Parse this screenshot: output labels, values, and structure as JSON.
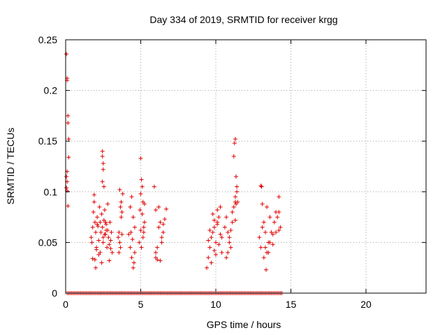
{
  "chart_data": {
    "type": "scatter",
    "title": "Day 334 of 2019, SRMTID for receiver krgg",
    "xlabel": "GPS time / hours",
    "ylabel": "SRMTID / TECUs",
    "xlim": [
      0,
      24
    ],
    "ylim": [
      0,
      0.25
    ],
    "xticks": [
      0,
      5,
      10,
      15,
      20
    ],
    "yticks": [
      0,
      0.05,
      0.1,
      0.15,
      0.2,
      0.25
    ],
    "xtick_labels": [
      "0",
      "5",
      "10",
      "15",
      "20"
    ],
    "ytick_labels": [
      "0",
      "0.05",
      "0.1",
      "0.15",
      "0.2",
      "0.25"
    ],
    "grid": true,
    "marker": "+",
    "color": "#e00000",
    "series": [
      {
        "name": "SRMTID",
        "x": [
          0.05,
          0.1,
          0.1,
          0.15,
          0.15,
          0.2,
          0.2,
          0.05,
          0.1,
          0.1,
          0.15,
          0.05,
          0.1,
          1.7,
          1.75,
          1.8,
          1.85,
          1.9,
          1.95,
          2.0,
          2.05,
          2.1,
          2.15,
          2.2,
          2.25,
          2.3,
          2.35,
          2.4,
          2.45,
          2.5,
          2.55,
          2.6,
          2.65,
          2.7,
          2.75,
          2.8,
          2.85,
          2.9,
          2.95,
          3.0,
          3.05,
          3.1,
          1.8,
          2.0,
          2.2,
          2.4,
          2.6,
          2.8,
          3.0,
          1.9,
          2.1,
          2.3,
          2.5,
          2.7,
          2.9,
          2.45,
          2.45,
          2.5,
          2.5,
          2.45,
          1.95,
          2.05,
          2.55,
          2.65,
          3.5,
          3.55,
          3.6,
          3.65,
          3.7,
          3.75,
          3.8,
          3.6,
          3.7,
          3.65,
          3.55,
          3.75,
          4.2,
          4.3,
          4.4,
          4.5,
          4.6,
          4.35,
          4.45,
          4.55,
          4.4,
          4.5,
          4.3,
          4.6,
          4.9,
          5.0,
          5.05,
          5.1,
          5.15,
          5.2,
          5.25,
          5.0,
          5.1,
          5.2,
          5.05,
          5.15,
          4.95,
          5.25,
          5.0,
          5.9,
          6.0,
          6.1,
          6.2,
          6.3,
          6.4,
          6.5,
          6.6,
          6.0,
          6.2,
          6.4,
          6.1,
          6.3,
          6.5,
          6.7,
          6.0,
          9.4,
          9.5,
          9.6,
          9.7,
          9.8,
          9.9,
          10.0,
          10.1,
          10.2,
          10.3,
          10.4,
          9.6,
          9.8,
          10.0,
          10.2,
          10.4,
          9.7,
          9.9,
          10.1,
          10.3,
          9.5,
          9.9,
          10.1,
          10.6,
          10.7,
          10.8,
          10.9,
          11.0,
          11.1,
          11.2,
          11.3,
          11.4,
          10.7,
          10.9,
          11.1,
          11.3,
          10.8,
          11.0,
          11.2,
          11.25,
          11.3,
          11.35,
          11.4,
          11.45,
          11.3,
          11.35,
          12.9,
          13.0,
          13.1,
          13.2,
          13.3,
          13.4,
          13.5,
          13.6,
          13.7,
          13.8,
          13.9,
          14.0,
          14.1,
          14.2,
          14.3,
          13.2,
          13.4,
          13.6,
          13.8,
          14.0,
          14.2,
          13.1,
          13.3,
          13.5,
          13.0,
          13.05,
          14.2,
          13.35
        ],
        "y": [
          0.236,
          0.212,
          0.21,
          0.175,
          0.168,
          0.152,
          0.134,
          0.115,
          0.11,
          0.101,
          0.086,
          0.104,
          0.12,
          0.055,
          0.05,
          0.065,
          0.08,
          0.09,
          0.07,
          0.06,
          0.045,
          0.075,
          0.066,
          0.052,
          0.085,
          0.07,
          0.06,
          0.078,
          0.065,
          0.05,
          0.072,
          0.082,
          0.058,
          0.068,
          0.045,
          0.062,
          0.055,
          0.048,
          0.07,
          0.052,
          0.06,
          0.04,
          0.034,
          0.025,
          0.038,
          0.03,
          0.058,
          0.088,
          0.044,
          0.097,
          0.068,
          0.04,
          0.055,
          0.062,
          0.032,
          0.14,
          0.135,
          0.128,
          0.122,
          0.11,
          0.033,
          0.043,
          0.105,
          0.07,
          0.055,
          0.06,
          0.05,
          0.045,
          0.075,
          0.08,
          0.098,
          0.102,
          0.09,
          0.085,
          0.04,
          0.058,
          0.058,
          0.045,
          0.035,
          0.025,
          0.065,
          0.06,
          0.053,
          0.03,
          0.095,
          0.075,
          0.085,
          0.04,
          0.05,
          0.133,
          0.112,
          0.105,
          0.09,
          0.065,
          0.07,
          0.062,
          0.078,
          0.06,
          0.045,
          0.055,
          0.082,
          0.088,
          0.098,
          0.105,
          0.04,
          0.033,
          0.065,
          0.07,
          0.055,
          0.06,
          0.073,
          0.082,
          0.085,
          0.05,
          0.045,
          0.032,
          0.068,
          0.083,
          0.035,
          0.025,
          0.035,
          0.045,
          0.055,
          0.06,
          0.065,
          0.05,
          0.07,
          0.075,
          0.085,
          0.04,
          0.062,
          0.078,
          0.038,
          0.048,
          0.055,
          0.03,
          0.072,
          0.082,
          0.058,
          0.052,
          0.042,
          0.068,
          0.065,
          0.075,
          0.06,
          0.05,
          0.045,
          0.07,
          0.085,
          0.09,
          0.1,
          0.035,
          0.055,
          0.08,
          0.072,
          0.04,
          0.062,
          0.135,
          0.148,
          0.152,
          0.115,
          0.105,
          0.09,
          0.095,
          0.088,
          0.055,
          0.045,
          0.065,
          0.07,
          0.06,
          0.085,
          0.05,
          0.075,
          0.06,
          0.048,
          0.07,
          0.08,
          0.075,
          0.095,
          0.065,
          0.035,
          0.04,
          0.05,
          0.058,
          0.06,
          0.062,
          0.088,
          0.045,
          0.04,
          0.106,
          0.105,
          0.08,
          0.023
        ]
      },
      {
        "name": "zero baseline",
        "x_range": [
          0.1,
          14.4
        ],
        "x_step": 0.1,
        "y": 0
      }
    ]
  }
}
